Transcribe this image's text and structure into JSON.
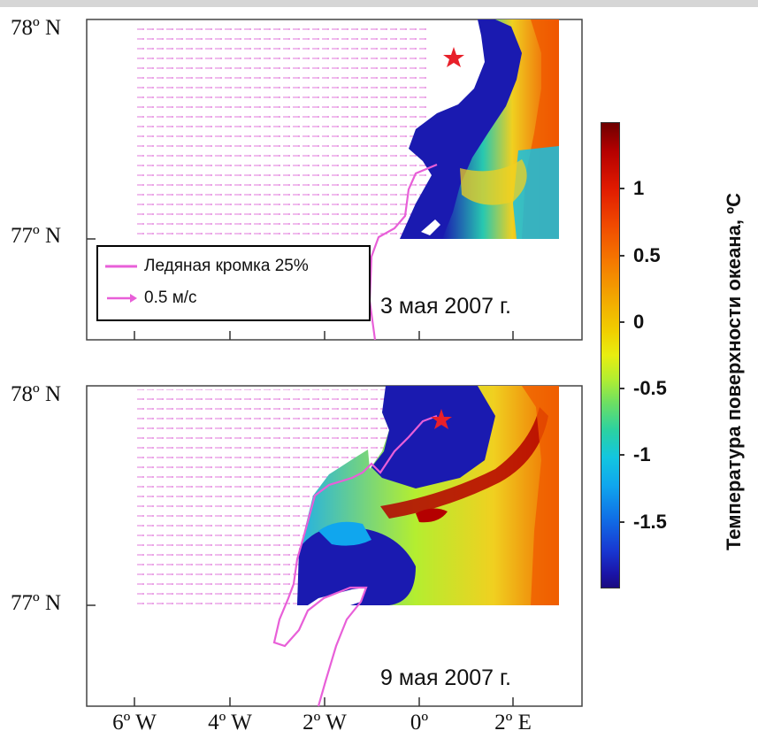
{
  "panels": [
    {
      "date": "3 мая 2007 г."
    },
    {
      "date": "9 мая 2007 г."
    }
  ],
  "y_axis": {
    "top_label": "78º N",
    "bottom_label": "77º N"
  },
  "x_axis": {
    "ticks": [
      "6º W",
      "4º W",
      "2º W",
      "0º",
      "2º E"
    ]
  },
  "legend": {
    "ice_edge_label": "Ледяная кромка 25%",
    "velocity_label": "0.5 м/с",
    "ice_edge_color": "#e85fd8",
    "arrow_color": "#e85fd8"
  },
  "colorbar": {
    "title": "Температура поверхности океана, ºС",
    "ticks": [
      "1",
      "0.5",
      "0",
      "-0.5",
      "-1",
      "-1.5"
    ],
    "tick_values": [
      1,
      0.5,
      0,
      -0.5,
      -1,
      -1.5
    ],
    "range": [
      -2,
      1.5
    ]
  },
  "marker": {
    "shape": "star",
    "color": "#e8202a"
  }
}
